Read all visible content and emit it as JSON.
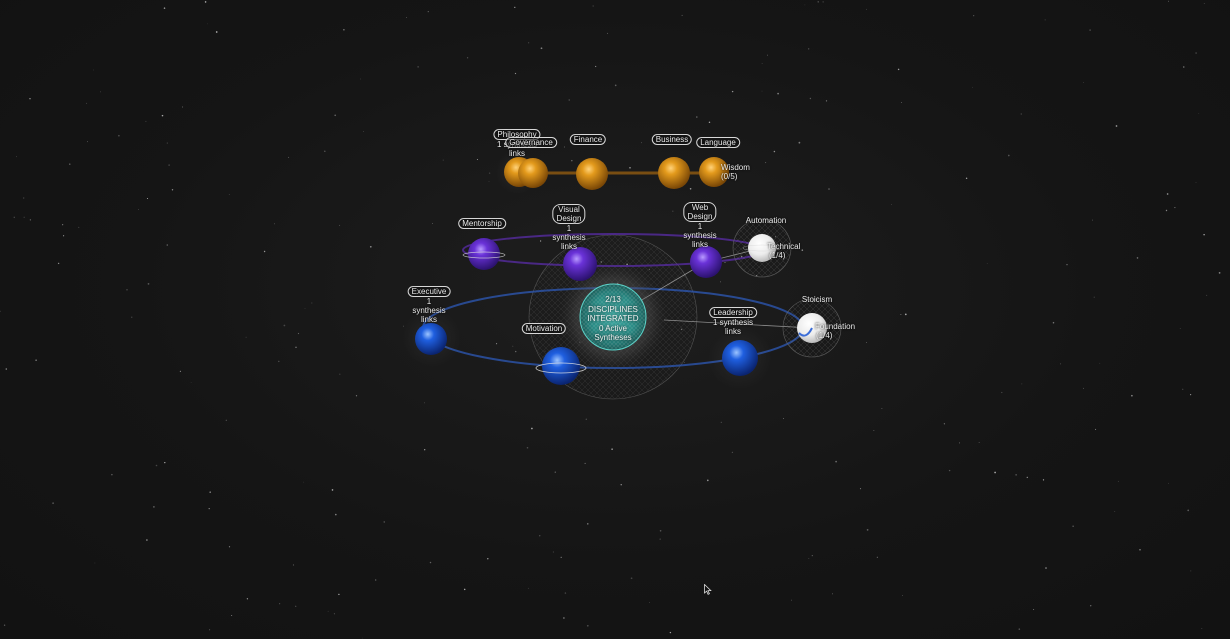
{
  "center": {
    "progress_line1": "2/13",
    "progress_line2": "DISCIPLINES",
    "progress_line3": "INTEGRATED",
    "syntheses_line1": "0 Active",
    "syntheses_line2": "Syntheses"
  },
  "nodes": {
    "philosophy": {
      "name": "Philosophy",
      "sub1": "1 synthesis",
      "sub2": "links"
    },
    "governance": {
      "name": "Governance"
    },
    "finance": {
      "name": "Finance"
    },
    "business": {
      "name": "Business"
    },
    "language": {
      "name": "Language"
    },
    "wisdom": {
      "name": "Wisdom",
      "count": "(0/5)"
    },
    "mentorship": {
      "name": "Mentorship"
    },
    "visual_design": {
      "name1": "Visual",
      "name2": "Design",
      "sub1": "1",
      "sub2": "synthesis",
      "sub3": "links"
    },
    "web_design": {
      "name1": "Web",
      "name2": "Design",
      "sub1": "1",
      "sub2": "synthesis",
      "sub3": "links"
    },
    "automation": {
      "name": "Automation"
    },
    "technical": {
      "name": "Technical",
      "count": "(1/4)"
    },
    "executive": {
      "name": "Executive",
      "sub1": "1",
      "sub2": "synthesis",
      "sub3": "links"
    },
    "motivation": {
      "name": "Motivation"
    },
    "leadership": {
      "name": "Leadership",
      "sub1": "1 synthesis",
      "sub2": "links"
    },
    "stoicism": {
      "name": "Stoicism"
    },
    "foundation": {
      "name": "Foundation",
      "count": "(1/4)"
    }
  },
  "colors": {
    "orange_planet": "#d98a10",
    "purple_planet": "#6a32d8",
    "blue_planet": "#1f5fe0",
    "white_planet": "#f2f2f2",
    "core_teal": "#2fa7a0",
    "blue_orbit": "#2e5ab8",
    "purple_orbit": "#5a2ca8",
    "orange_orbit": "#b8720e"
  }
}
